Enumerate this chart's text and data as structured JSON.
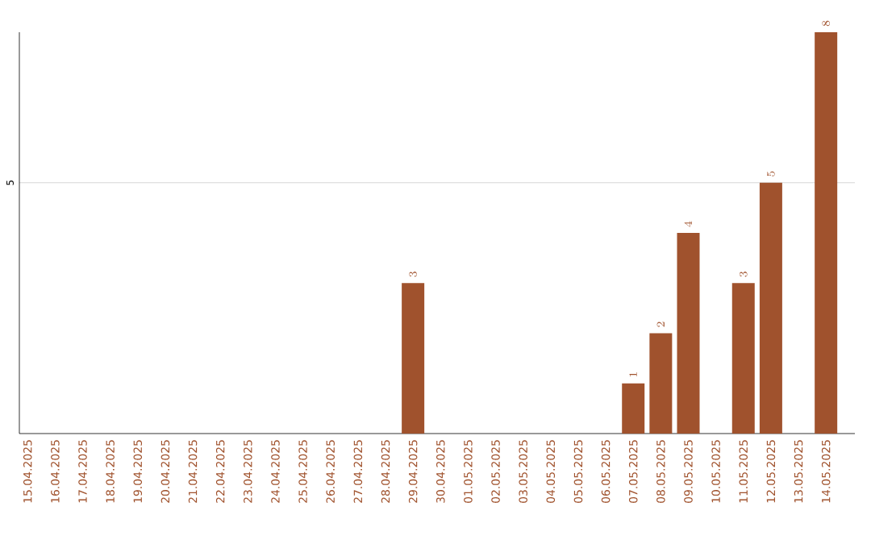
{
  "chart_data": {
    "type": "bar",
    "categories": [
      "15.04.2025",
      "16.04.2025",
      "17.04.2025",
      "18.04.2025",
      "19.04.2025",
      "20.04.2025",
      "21.04.2025",
      "22.04.2025",
      "23.04.2025",
      "24.04.2025",
      "25.04.2025",
      "26.04.2025",
      "27.04.2025",
      "28.04.2025",
      "29.04.2025",
      "30.04.2025",
      "01.05.2025",
      "02.05.2025",
      "03.05.2025",
      "04.05.2025",
      "05.05.2025",
      "06.05.2025",
      "07.05.2025",
      "08.05.2025",
      "09.05.2025",
      "10.05.2025",
      "11.05.2025",
      "12.05.2025",
      "13.05.2025",
      "14.05.2025"
    ],
    "values": [
      null,
      null,
      null,
      null,
      null,
      null,
      null,
      null,
      null,
      null,
      null,
      null,
      null,
      null,
      3,
      null,
      null,
      null,
      null,
      null,
      null,
      null,
      1,
      2,
      4,
      null,
      3,
      5,
      null,
      8
    ],
    "color": "#a0522d",
    "ylim": [
      0,
      8
    ],
    "yticks": [
      5
    ],
    "grid": "y",
    "data_labels": true
  }
}
